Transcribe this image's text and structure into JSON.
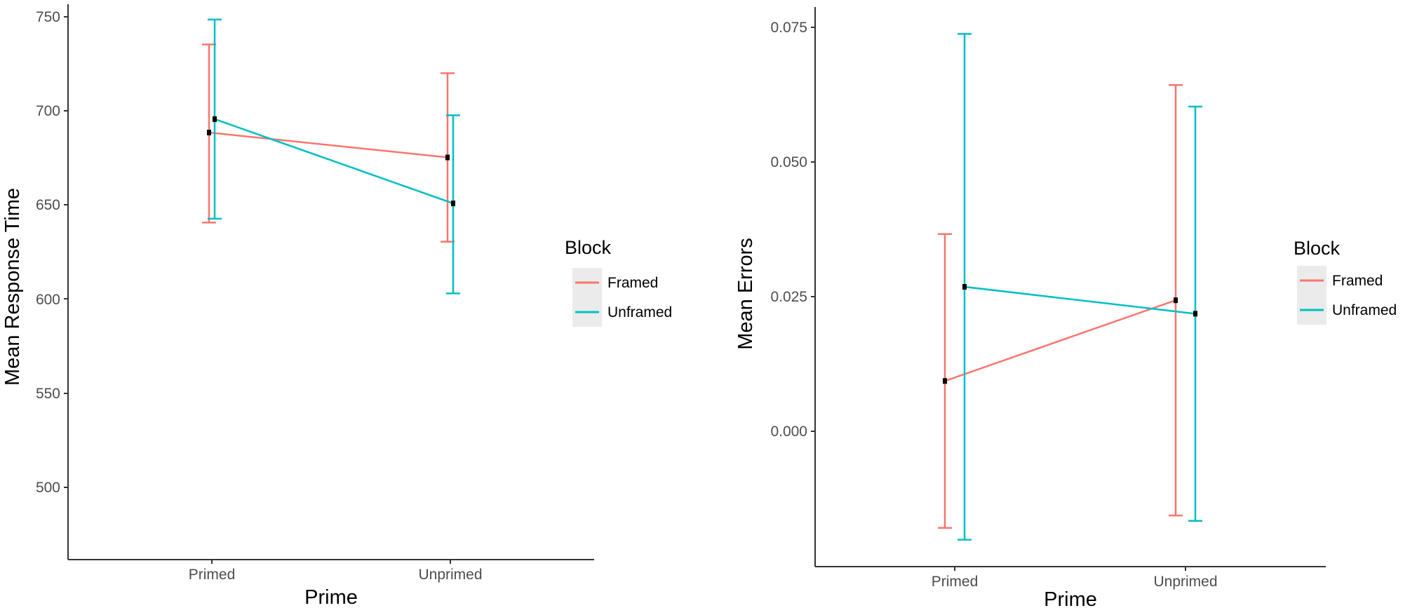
{
  "chart_data": [
    {
      "type": "line",
      "xlabel": "Prime",
      "ylabel": "Mean Response Time",
      "categories": [
        "Primed",
        "Unprimed"
      ],
      "y_ticks": [
        "500",
        "550",
        "600",
        "650",
        "700",
        "750"
      ],
      "ylim": [
        462,
        752
      ],
      "legend": {
        "title": "Block",
        "position": "right"
      },
      "grid": false,
      "series": [
        {
          "name": "Framed",
          "color": "#F8766D",
          "values": [
            685,
            672
          ],
          "error_low": [
            638,
            628
          ],
          "error_high": [
            731,
            716
          ]
        },
        {
          "name": "Unframed",
          "color": "#00BFC4",
          "values": [
            692,
            648
          ],
          "error_low": [
            640,
            601
          ],
          "error_high": [
            744,
            694
          ]
        }
      ]
    },
    {
      "type": "line",
      "xlabel": "Prime",
      "ylabel": "Mean Errors",
      "categories": [
        "Primed",
        "Unprimed"
      ],
      "y_ticks": [
        "0.000",
        "0.025",
        "0.050",
        "0.075"
      ],
      "ylim": [
        -0.0245,
        0.0795
      ],
      "legend": {
        "title": "Block",
        "position": "right"
      },
      "grid": false,
      "series": [
        {
          "name": "Framed",
          "color": "#F8766D",
          "values": [
            0.01,
            0.025
          ],
          "error_low": [
            -0.0173,
            -0.015
          ],
          "error_high": [
            0.0373,
            0.065
          ]
        },
        {
          "name": "Unframed",
          "color": "#00BFC4",
          "values": [
            0.0275,
            0.0225
          ],
          "error_low": [
            -0.0195,
            -0.016
          ],
          "error_high": [
            0.0745,
            0.061
          ]
        }
      ]
    }
  ]
}
